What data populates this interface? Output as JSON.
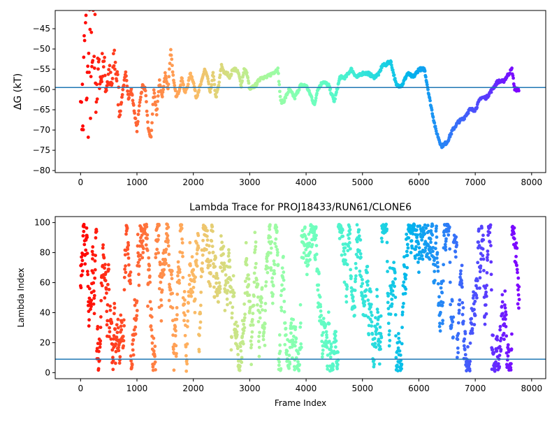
{
  "chart_data": [
    {
      "type": "scatter",
      "title": "",
      "xlabel": "",
      "ylabel": "ΔG (kT)",
      "xlim": [
        -450,
        8250
      ],
      "ylim": [
        -80.5,
        -40.5
      ],
      "xticks": [
        0,
        1000,
        2000,
        3000,
        4000,
        5000,
        6000,
        7000,
        8000
      ],
      "yticks": [
        -80,
        -75,
        -70,
        -65,
        -60,
        -55,
        -50,
        -45
      ],
      "hline": -59.5,
      "color_by": "frame index (rainbow colormap, red = early, violet = late)",
      "series": [
        {
          "x": [
            0,
            40,
            80,
            120,
            160,
            200,
            240,
            280,
            320,
            360,
            400,
            450,
            500,
            550,
            600,
            650,
            700,
            750,
            800,
            850,
            900,
            950,
            1000,
            1050,
            1100,
            1150,
            1200,
            1250,
            1300,
            1350,
            1400,
            1450,
            1500,
            1550,
            1600,
            1650,
            1700,
            1750,
            1800,
            1850,
            1900,
            1950,
            2000,
            2050,
            2100,
            2150,
            2200,
            2250,
            2300,
            2350,
            2400,
            2450,
            2500,
            2550,
            2600,
            2650,
            2700,
            2750,
            2800,
            2850,
            2900,
            2950,
            3000,
            3100,
            3200,
            3300,
            3400,
            3500,
            3550,
            3600,
            3700,
            3800,
            3900,
            4000,
            4100,
            4150,
            4200,
            4300,
            4400,
            4500,
            4600,
            4700,
            4800,
            4900,
            5000,
            5100,
            5200,
            5300,
            5350,
            5400,
            5500,
            5600,
            5700,
            5800,
            5900,
            6000,
            6100,
            6200,
            6300,
            6400,
            6500,
            6600,
            6700,
            6800,
            6900,
            7000,
            7100,
            7200,
            7300,
            7400,
            7500,
            7600,
            7650,
            7700,
            7780
          ],
          "y": [
            -48,
            -70,
            -44,
            -62,
            -53,
            -60,
            -48,
            -57,
            -55,
            -58,
            -52,
            -59,
            -56,
            -60,
            -52,
            -58,
            -66,
            -60,
            -56,
            -62,
            -60,
            -65,
            -70,
            -63,
            -59,
            -60,
            -70,
            -72,
            -60,
            -66,
            -58,
            -62,
            -56,
            -60,
            -50,
            -58,
            -62,
            -60,
            -57,
            -61,
            -59,
            -56,
            -58,
            -62,
            -60,
            -58,
            -55,
            -57,
            -61,
            -56,
            -62,
            -59,
            -54,
            -56,
            -56,
            -57,
            -55,
            -55,
            -56,
            -59,
            -55,
            -56,
            -60,
            -59,
            -57,
            -57,
            -56,
            -55,
            -63,
            -63,
            -60,
            -62,
            -59,
            -59,
            -62,
            -64,
            -60,
            -58,
            -59,
            -63,
            -57,
            -57,
            -55,
            -57,
            -56,
            -56,
            -57,
            -56,
            -54,
            -54,
            -53,
            -59,
            -59,
            -56,
            -57,
            -55,
            -55,
            -63,
            -70,
            -74,
            -73,
            -70,
            -68,
            -67,
            -65,
            -65,
            -62,
            -62,
            -60,
            -58,
            -58,
            -56,
            -55,
            -60,
            -60
          ]
        }
      ]
    },
    {
      "type": "scatter",
      "title": "Lambda Trace for PROJ18433/RUN61/CLONE6",
      "xlabel": "Frame Index",
      "ylabel": "Lambda Index",
      "xlim": [
        -450,
        8250
      ],
      "ylim": [
        -4,
        104
      ],
      "xticks": [
        0,
        1000,
        2000,
        3000,
        4000,
        5000,
        6000,
        7000,
        8000
      ],
      "yticks": [
        0,
        20,
        40,
        60,
        80,
        100
      ],
      "hline": 9,
      "color_by": "frame index (rainbow colormap, red = early, violet = late)",
      "frame_range": [
        0,
        7780
      ],
      "value_range": [
        1,
        99
      ]
    }
  ]
}
